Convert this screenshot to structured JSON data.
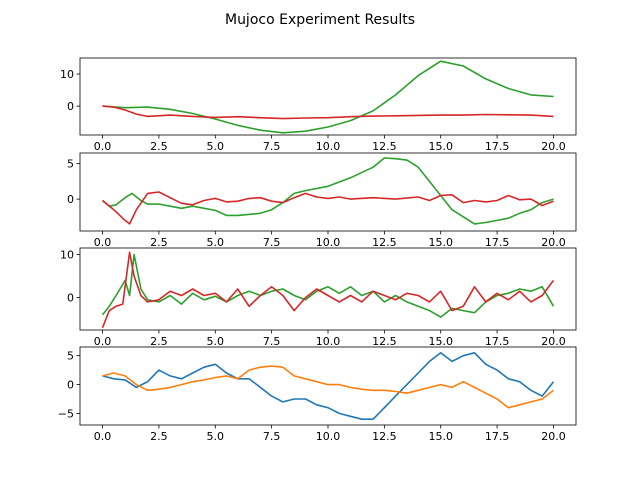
{
  "figure": {
    "title": "Mujoco Experiment Results"
  },
  "colors": {
    "blue": "#1f77b4",
    "orange": "#ff7f0e",
    "green": "#2ca02c",
    "red": "#d62728"
  },
  "chart_data": [
    {
      "type": "line",
      "xlim": [
        -1,
        21
      ],
      "ylim": [
        -9,
        15
      ],
      "xticks": [
        0,
        2.5,
        5,
        7.5,
        10,
        12.5,
        15,
        17.5,
        20
      ],
      "xtick_labels": [
        "0.0",
        "2.5",
        "5.0",
        "7.5",
        "10.0",
        "12.5",
        "15.0",
        "17.5",
        "20.0"
      ],
      "yticks": [
        0,
        10
      ],
      "ytick_labels": [
        "0",
        "10"
      ],
      "series": [
        {
          "color": "green",
          "x": [
            0,
            1,
            2,
            3,
            4,
            5,
            6,
            7,
            8,
            9,
            10,
            11,
            12,
            13,
            14,
            15,
            16,
            17,
            18,
            19,
            20
          ],
          "y": [
            0,
            -0.5,
            -0.3,
            -1,
            -2.3,
            -4,
            -6,
            -7.5,
            -8.3,
            -7.8,
            -6.5,
            -4.5,
            -1.5,
            3.5,
            9.5,
            14,
            12.5,
            8.5,
            5.5,
            3.5,
            3
          ]
        },
        {
          "color": "red",
          "x": [
            0,
            0.5,
            1,
            1.5,
            2,
            3,
            4,
            5,
            6,
            7,
            8,
            9,
            10,
            11,
            12,
            13,
            14,
            15,
            16,
            17,
            18,
            19,
            20
          ],
          "y": [
            0,
            -0.3,
            -1.2,
            -2.5,
            -3.2,
            -2.8,
            -3.2,
            -3.5,
            -3.3,
            -3.6,
            -3.9,
            -3.7,
            -3.6,
            -3.3,
            -3.1,
            -3,
            -2.9,
            -2.8,
            -2.8,
            -2.6,
            -2.7,
            -2.8,
            -3.2
          ]
        }
      ]
    },
    {
      "type": "line",
      "xlim": [
        -1,
        21
      ],
      "ylim": [
        -4.5,
        6.5
      ],
      "xticks": [
        0,
        2.5,
        5,
        7.5,
        10,
        12.5,
        15,
        17.5,
        20
      ],
      "xtick_labels": [
        "0.0",
        "2.5",
        "5.0",
        "7.5",
        "10.0",
        "12.5",
        "15.0",
        "17.5",
        "20.0"
      ],
      "yticks": [
        0,
        5
      ],
      "ytick_labels": [
        "0",
        "5"
      ],
      "series": [
        {
          "color": "green",
          "x": [
            0,
            0.3,
            0.6,
            1,
            1.3,
            1.7,
            2,
            2.5,
            3,
            3.5,
            4,
            5,
            5.5,
            6,
            7,
            7.5,
            8,
            8.5,
            9,
            9.5,
            10,
            11,
            12,
            12.5,
            13,
            13.5,
            14,
            14.5,
            15,
            15.5,
            16,
            16.5,
            17,
            17.5,
            18,
            18.5,
            19,
            19.5,
            20
          ],
          "y": [
            -0.2,
            -1,
            -0.8,
            0.2,
            0.8,
            -0.2,
            -0.7,
            -0.7,
            -1,
            -1.3,
            -1,
            -1.6,
            -2.3,
            -2.3,
            -2,
            -1.5,
            -0.5,
            0.8,
            1.2,
            1.5,
            1.8,
            3,
            4.5,
            5.8,
            5.7,
            5.5,
            4.5,
            2.5,
            0.5,
            -1.5,
            -2.5,
            -3.5,
            -3.3,
            -3,
            -2.7,
            -2,
            -1.5,
            -0.5,
            0
          ]
        },
        {
          "color": "red",
          "x": [
            0,
            0.5,
            1,
            1.2,
            1.5,
            2,
            2.5,
            3,
            3.5,
            4,
            4.5,
            5,
            5.5,
            6,
            6.5,
            7,
            7.5,
            8,
            8.5,
            9,
            9.5,
            10,
            10.5,
            11,
            12,
            13,
            14,
            14.5,
            15,
            15.5,
            16,
            16.5,
            17,
            17.5,
            18,
            18.5,
            19,
            19.5,
            20
          ],
          "y": [
            -0.2,
            -1.5,
            -3,
            -3.5,
            -1.5,
            0.8,
            1,
            0.2,
            -0.6,
            -0.8,
            -0.2,
            0.1,
            -0.4,
            -0.3,
            0.1,
            0.2,
            -0.3,
            -0.5,
            0.2,
            0.8,
            0.3,
            0.1,
            0.3,
            0,
            0.2,
            0,
            0.3,
            -0.2,
            0.5,
            0.6,
            -0.5,
            -0.2,
            -0.4,
            -0.2,
            0.5,
            -0.1,
            0,
            -0.9,
            -0.3
          ]
        }
      ]
    },
    {
      "type": "line",
      "xlim": [
        -1,
        21
      ],
      "ylim": [
        -7.5,
        11.5
      ],
      "xticks": [
        0,
        2.5,
        5,
        7.5,
        10,
        12.5,
        15,
        17.5,
        20
      ],
      "xtick_labels": [
        "0.0",
        "2.5",
        "5.0",
        "7.5",
        "10.0",
        "12.5",
        "15.0",
        "17.5",
        "20.0"
      ],
      "yticks": [
        0,
        10
      ],
      "ytick_labels": [
        "0",
        "10"
      ],
      "series": [
        {
          "color": "green",
          "x": [
            0,
            0.3,
            0.6,
            1,
            1.2,
            1.4,
            1.7,
            2,
            2.5,
            3,
            3.5,
            4,
            4.5,
            5,
            5.5,
            6,
            6.5,
            7,
            7.5,
            8,
            8.5,
            9,
            9.5,
            10,
            10.5,
            11,
            11.5,
            12,
            12.5,
            13,
            13.5,
            14,
            14.5,
            15,
            15.5,
            16,
            16.5,
            17,
            17.5,
            18,
            18.5,
            19,
            19.5,
            20
          ],
          "y": [
            -4,
            -2,
            0.5,
            4,
            0.5,
            10,
            2,
            -0.5,
            -1,
            0.5,
            -1.5,
            1,
            -0.5,
            0.3,
            -1,
            0.5,
            1.5,
            0.5,
            1.5,
            2,
            0.5,
            -0.5,
            1.5,
            2.5,
            1,
            2.5,
            0.5,
            1.5,
            -1,
            0.5,
            -1,
            -2,
            -3,
            -4.5,
            -2.5,
            -3,
            -3.5,
            -1,
            0.5,
            1,
            2,
            1.5,
            2.5,
            -2
          ]
        },
        {
          "color": "red",
          "x": [
            0,
            0.3,
            0.6,
            0.9,
            1.2,
            1.4,
            1.7,
            2,
            2.5,
            3,
            3.5,
            4,
            4.5,
            5,
            5.5,
            6,
            6.5,
            7,
            7.5,
            8,
            8.5,
            9,
            9.5,
            10,
            10.5,
            11,
            11.5,
            12,
            12.5,
            13,
            13.5,
            14,
            14.5,
            15,
            15.5,
            16,
            16.5,
            17,
            17.5,
            18,
            18.5,
            19,
            19.5,
            20
          ],
          "y": [
            -7,
            -3,
            -2,
            -1.5,
            10.5,
            5,
            0.5,
            -1,
            -0.5,
            1.5,
            0.5,
            2,
            0.5,
            1,
            -1,
            2,
            -2,
            0.5,
            2.5,
            0.5,
            -3,
            0,
            2,
            0.5,
            -1,
            0.5,
            -1,
            1.5,
            0.5,
            -0.5,
            1,
            0.5,
            -1,
            1.5,
            -3,
            -2,
            2.5,
            -1,
            1,
            -0.5,
            1.5,
            -1,
            0.5,
            4
          ]
        }
      ]
    },
    {
      "type": "line",
      "xlim": [
        -1,
        21
      ],
      "ylim": [
        -7,
        6.5
      ],
      "xticks": [
        0,
        2.5,
        5,
        7.5,
        10,
        12.5,
        15,
        17.5,
        20
      ],
      "xtick_labels": [
        "0.0",
        "2.5",
        "5.0",
        "7.5",
        "10.0",
        "12.5",
        "15.0",
        "17.5",
        "20.0"
      ],
      "yticks": [
        -5,
        0,
        5
      ],
      "ytick_labels": [
        "−5",
        "0",
        "5"
      ],
      "series": [
        {
          "color": "blue",
          "x": [
            0,
            0.5,
            1,
            1.5,
            2,
            2.5,
            3,
            3.5,
            4,
            4.5,
            5,
            5.5,
            6,
            6.5,
            7,
            7.5,
            8,
            8.5,
            9,
            9.5,
            10,
            10.5,
            11,
            11.5,
            12,
            12.5,
            13,
            13.5,
            14,
            14.5,
            15,
            15.5,
            16,
            16.5,
            17,
            17.5,
            18,
            18.5,
            19,
            19.5,
            20
          ],
          "y": [
            1.5,
            1,
            0.8,
            -0.5,
            0.5,
            2.5,
            1.5,
            1,
            2,
            3,
            3.5,
            2,
            1,
            1,
            -0.5,
            -2,
            -3,
            -2.5,
            -2.5,
            -3.5,
            -4,
            -5,
            -5.5,
            -6,
            -6,
            -4,
            -2,
            0,
            2,
            4,
            5.5,
            4,
            5,
            5.5,
            3.5,
            2.5,
            1,
            0.5,
            -1,
            -2,
            0.5
          ]
        },
        {
          "color": "orange",
          "x": [
            0,
            0.5,
            1,
            1.5,
            2,
            2.5,
            3,
            3.5,
            4,
            4.5,
            5,
            5.5,
            6,
            6.5,
            7,
            7.5,
            8,
            8.5,
            9,
            9.5,
            10,
            10.5,
            11,
            11.5,
            12,
            12.5,
            13,
            13.5,
            14,
            14.5,
            15,
            15.5,
            16,
            16.5,
            17,
            17.5,
            18,
            18.5,
            19,
            19.5,
            20
          ],
          "y": [
            1.5,
            2,
            1.5,
            0,
            -1,
            -0.8,
            -0.5,
            0,
            0.5,
            0.8,
            1.2,
            1.5,
            1,
            2.5,
            3,
            3.2,
            3,
            1.5,
            1,
            0.5,
            0,
            0,
            -0.5,
            -0.8,
            -1,
            -1,
            -1.2,
            -1.5,
            -1,
            -0.5,
            0,
            -0.5,
            0.5,
            -0.5,
            -1.5,
            -2.5,
            -4,
            -3.5,
            -3,
            -2.5,
            -1
          ]
        }
      ]
    }
  ]
}
